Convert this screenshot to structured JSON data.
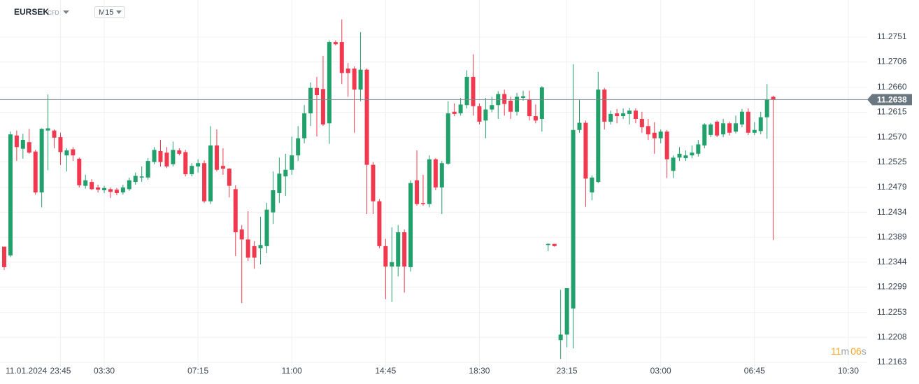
{
  "chart_data": {
    "type": "candlestick",
    "symbol": "EURSEK",
    "symbol_tag": "CFD",
    "timeframe": "M15",
    "up_color": "#22a06b",
    "down_color": "#f0394e",
    "grid": true,
    "current_price": 11.2638,
    "countdown": {
      "minutes": "11",
      "minutes_unit": "m",
      "seconds": "06",
      "seconds_unit": "s"
    },
    "ylim": [
      11.2154,
      11.2818
    ],
    "yticks": [
      11.2751,
      11.2706,
      {
        "value": 11.266,
        "label": "11.2660"
      },
      11.2615,
      {
        "value": 11.257,
        "label": "11.2570"
      },
      11.2525,
      11.2479,
      11.2434,
      11.2389,
      11.2344,
      11.2299,
      11.2253,
      11.2208,
      11.2163
    ],
    "categories": [
      "11.01.2024",
      null,
      null,
      null,
      null,
      null,
      null,
      null,
      null,
      "23:45",
      null,
      null,
      null,
      null,
      null,
      null,
      "03:30",
      null,
      null,
      null,
      null,
      null,
      null,
      null,
      null,
      null,
      null,
      null,
      null,
      null,
      null,
      "07:15",
      null,
      null,
      null,
      null,
      null,
      null,
      null,
      null,
      null,
      null,
      null,
      null,
      null,
      null,
      "11:00",
      null,
      null,
      null,
      null,
      null,
      null,
      null,
      null,
      null,
      null,
      null,
      null,
      null,
      null,
      "14:45",
      null,
      null,
      null,
      null,
      null,
      null,
      null,
      null,
      null,
      null,
      null,
      null,
      null,
      null,
      "18:30",
      null,
      null,
      null,
      null,
      null,
      null,
      null,
      null,
      null,
      null,
      null,
      null,
      null,
      "23:15",
      null,
      null,
      null,
      null,
      null,
      null,
      null,
      null,
      null,
      null,
      null,
      null,
      null,
      null,
      "03:00",
      null,
      null,
      null,
      null,
      null,
      null,
      null,
      null,
      null,
      null,
      null,
      null,
      null,
      null,
      "06:45",
      null,
      null,
      null,
      null,
      null,
      null,
      null,
      null,
      null,
      null,
      null,
      null,
      null,
      null,
      "10:30"
    ],
    "open": [
      11.2372,
      11.2356,
      11.2573,
      11.2549,
      11.2561,
      11.2544,
      11.247,
      11.2582,
      11.2582,
      11.257,
      11.2537,
      11.2548,
      11.2531,
      11.2482,
      11.2489,
      11.2479,
      11.2474,
      11.2476,
      11.2475,
      11.247,
      11.2476,
      11.2489,
      11.2497,
      11.2497,
      11.2525,
      11.2545,
      11.2542,
      11.2521,
      11.2546,
      11.2543,
      11.2503,
      11.2517,
      11.2523,
      11.2454,
      11.2555,
      11.2518,
      11.2513,
      11.2476,
      11.2403,
      11.2385,
      11.2373,
      11.2369,
      11.2373,
      11.2434,
      11.2469,
      11.2499,
      11.2511,
      11.2537,
      11.2568,
      11.2613,
      11.2659,
      11.2657,
      11.2595,
      11.2742,
      11.2742,
      11.2694,
      11.2694,
      11.2656,
      11.2692,
      11.252,
      11.2454,
      11.2373,
      11.2336,
      11.2336,
      11.2398,
      11.2335,
      11.2492,
      11.2451,
      11.2449,
      11.253,
      11.2479,
      11.2522,
      11.2616,
      11.2613,
      11.2628,
      11.2679,
      11.2626,
      11.26,
      11.262,
      11.2628,
      11.2648,
      11.2636,
      11.2616,
      11.2641,
      11.2638,
      11.2608,
      11.2603,
      11.2375,
      11.2377,
      11.2203,
      11.2213,
      11.226,
      11.2583,
      11.2596,
      11.247,
      11.2489,
      11.2656,
      11.2598,
      11.2613,
      11.2608,
      11.2612,
      11.2618,
      11.2603,
      11.259,
      11.2578,
      11.2568,
      11.258,
      11.2509,
      11.2533,
      11.2532,
      11.2537,
      11.254,
      11.2555,
      11.2574,
      11.2598,
      11.2575,
      11.2595,
      11.258,
      11.2593,
      11.2616,
      11.2578,
      11.2581,
      11.2606,
      11.2643,
      null,
      null,
      null,
      null,
      null,
      null,
      null,
      null,
      null,
      null,
      null,
      null
    ],
    "high": [
      11.2372,
      11.258,
      11.2582,
      11.2576,
      11.2585,
      11.2547,
      11.2586,
      11.2647,
      11.2584,
      11.2578,
      11.255,
      11.2552,
      11.2533,
      11.2502,
      11.2494,
      11.2484,
      11.2482,
      11.2479,
      11.2478,
      11.2484,
      11.2497,
      11.2506,
      11.2517,
      11.2532,
      11.2552,
      11.2565,
      11.2552,
      11.2562,
      11.255,
      11.2547,
      11.2523,
      11.253,
      11.2528,
      11.259,
      11.2584,
      11.255,
      11.2514,
      11.2483,
      11.2411,
      11.2436,
      11.2382,
      11.2426,
      11.2451,
      11.2508,
      11.2533,
      11.254,
      11.2571,
      11.259,
      11.2628,
      11.2669,
      11.2679,
      11.2717,
      11.2745,
      11.2745,
      11.2783,
      11.2704,
      11.2698,
      11.276,
      11.2694,
      11.2525,
      11.2458,
      11.2386,
      11.2407,
      11.2411,
      11.2403,
      11.2492,
      11.2546,
      11.2502,
      11.2537,
      11.2532,
      11.2527,
      11.2635,
      11.2631,
      11.2641,
      11.2691,
      11.272,
      11.2631,
      11.2641,
      11.2643,
      11.2653,
      11.2656,
      11.2643,
      11.265,
      11.2654,
      11.2654,
      11.2629,
      11.2662,
      11.2378,
      11.2377,
      11.2294,
      11.2297,
      11.2702,
      11.2638,
      11.26,
      11.2501,
      11.2688,
      11.2659,
      11.2618,
      11.2621,
      11.2622,
      11.2623,
      11.2622,
      11.2616,
      11.2603,
      11.2597,
      11.2584,
      11.2583,
      11.2537,
      11.2552,
      11.2546,
      11.2555,
      11.2565,
      11.2595,
      11.2596,
      11.26,
      11.2603,
      11.2598,
      11.2609,
      11.2621,
      11.2622,
      11.2597,
      11.2616,
      11.2666,
      11.2645,
      null,
      null,
      null,
      null,
      null,
      null,
      null,
      null,
      null,
      null,
      null,
      null
    ],
    "low": [
      11.233,
      11.2353,
      11.2527,
      11.2531,
      11.254,
      11.2466,
      11.2443,
      11.251,
      11.255,
      11.252,
      11.2508,
      11.2527,
      11.2479,
      11.2477,
      11.2474,
      11.247,
      11.2469,
      11.246,
      11.2465,
      11.2466,
      11.2473,
      11.2484,
      11.2489,
      11.2493,
      11.2521,
      11.2517,
      11.2514,
      11.2517,
      11.2537,
      11.2499,
      11.2499,
      11.2506,
      11.2451,
      11.2449,
      11.2508,
      11.2502,
      11.2461,
      11.2355,
      11.227,
      11.2346,
      11.2332,
      11.234,
      11.236,
      11.2413,
      11.2451,
      11.2464,
      11.2502,
      11.2527,
      11.2559,
      11.259,
      11.2571,
      11.259,
      11.2558,
      11.2736,
      11.2666,
      11.2643,
      11.2578,
      11.2635,
      11.2431,
      11.2431,
      11.2369,
      11.2277,
      11.2272,
      11.2318,
      11.2289,
      11.2327,
      11.2446,
      11.2446,
      11.2443,
      11.2474,
      11.2431,
      11.252,
      11.2608,
      11.2609,
      11.2622,
      11.2609,
      11.2593,
      11.2568,
      11.2615,
      11.2603,
      11.2609,
      11.2603,
      11.2609,
      11.2636,
      11.26,
      11.2595,
      11.258,
      11.2364,
      11.2372,
      11.2169,
      11.219,
      11.2188,
      11.2578,
      11.2444,
      11.2456,
      11.2487,
      11.2584,
      11.2593,
      11.2595,
      11.2603,
      11.2593,
      11.2595,
      11.2578,
      11.2565,
      11.254,
      11.2559,
      11.2496,
      11.2496,
      11.2527,
      11.2527,
      11.2532,
      11.2535,
      11.255,
      11.257,
      11.257,
      11.257,
      11.2573,
      11.2577,
      11.2588,
      11.2574,
      11.2574,
      11.2575,
      11.2567,
      11.2384,
      null,
      null,
      null,
      null,
      null,
      null,
      null,
      null,
      null,
      null,
      null,
      null
    ],
    "close": [
      11.2335,
      11.2575,
      11.2552,
      11.2565,
      11.2542,
      11.247,
      11.2585,
      11.2586,
      11.2569,
      11.2543,
      11.2546,
      11.2537,
      11.2483,
      11.2492,
      11.2476,
      11.2475,
      11.2478,
      11.2471,
      11.2469,
      11.2479,
      11.2492,
      11.25,
      11.2499,
      11.2527,
      11.2547,
      11.2525,
      11.2517,
      11.2547,
      11.254,
      11.2503,
      11.2518,
      11.2523,
      11.2454,
      11.2555,
      11.2511,
      11.2513,
      11.2482,
      11.2398,
      11.2385,
      11.2352,
      11.2352,
      11.2375,
      11.2439,
      11.2474,
      11.2504,
      11.2511,
      11.2537,
      11.2568,
      11.2613,
      11.2659,
      11.2646,
      11.2593,
      11.2742,
      11.2738,
      11.2686,
      11.2686,
      11.2656,
      11.2692,
      11.252,
      11.2454,
      11.2373,
      11.2336,
      11.2344,
      11.2398,
      11.2336,
      11.2487,
      11.2449,
      11.2449,
      11.253,
      11.2479,
      11.2523,
      11.2613,
      11.2612,
      11.2629,
      11.2679,
      11.2626,
      11.2598,
      11.262,
      11.2628,
      11.2648,
      11.263,
      11.2616,
      11.2643,
      11.2644,
      11.2608,
      11.26,
      11.266,
      11.2377,
      11.2373,
      11.2213,
      11.2297,
      11.2583,
      11.2596,
      11.2495,
      11.2497,
      11.2656,
      11.2598,
      11.2612,
      11.2608,
      11.2613,
      11.2618,
      11.2603,
      11.2588,
      11.2575,
      11.2568,
      11.258,
      11.253,
      11.2533,
      11.254,
      11.2537,
      11.2542,
      11.2557,
      11.2593,
      11.2593,
      11.2573,
      11.2595,
      11.2578,
      11.2595,
      11.2616,
      11.2578,
      11.2583,
      11.2606,
      11.2638,
      11.2638,
      null,
      null,
      null,
      null,
      null,
      null,
      null,
      null,
      null,
      null,
      null,
      null
    ]
  }
}
